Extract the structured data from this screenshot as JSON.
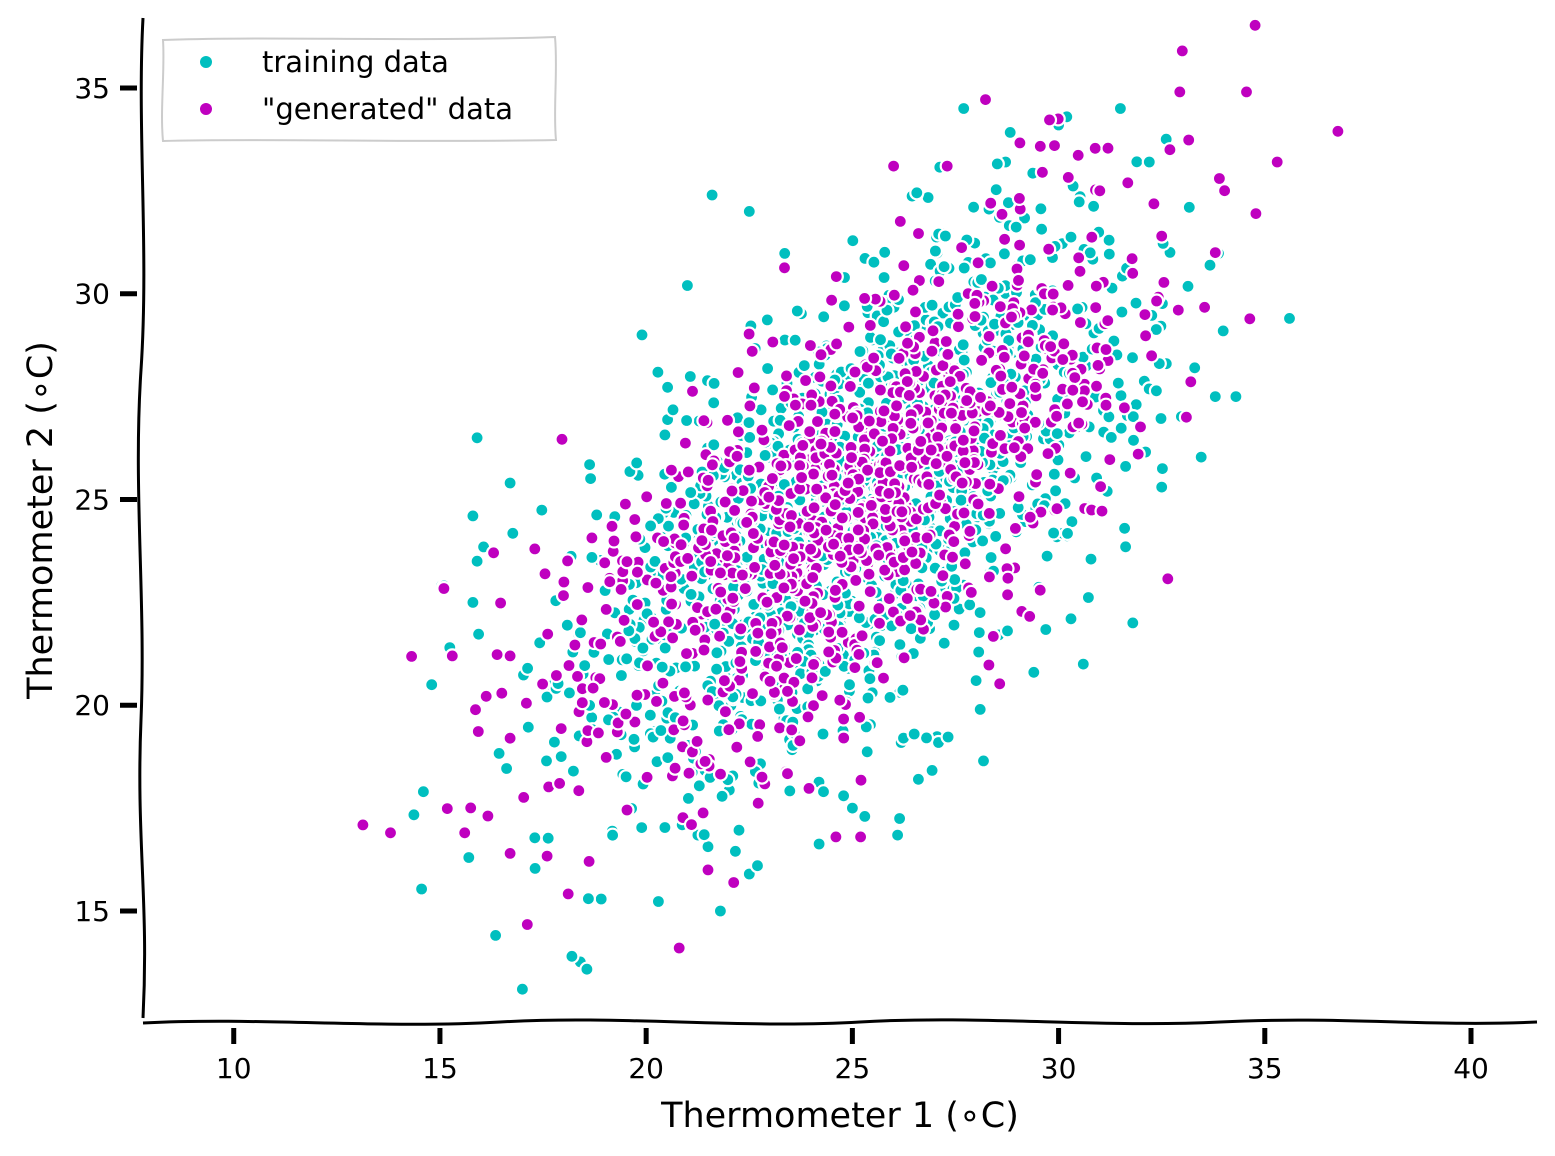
{
  "chart_data": {
    "type": "scatter",
    "xlabel": "Thermometer 1 (∘C)",
    "ylabel": "Thermometer 2 (∘C)",
    "xlim": [
      7.8,
      41.6
    ],
    "ylim": [
      12.4,
      36.7
    ],
    "xticks": [
      "10",
      "15",
      "20",
      "25",
      "30",
      "35",
      "40"
    ],
    "yticks": [
      "15",
      "20",
      "25",
      "30",
      "35"
    ],
    "legend_position": "top-left",
    "series": [
      {
        "name": "training data",
        "color": "#00BFBF",
        "distribution": {
          "mean_x": 25.2,
          "mean_y": 25.0,
          "std_x": 3.4,
          "std_y": 3.3,
          "correlation": 0.62,
          "count": 1500
        },
        "points": [
          [
            27.7,
            34.5
          ],
          [
            31.5,
            34.5
          ],
          [
            30.2,
            34.3
          ],
          [
            30.0,
            34.1
          ],
          [
            32.2,
            33.2
          ],
          [
            21.6,
            32.4
          ],
          [
            22.5,
            32.0
          ],
          [
            35.6,
            29.4
          ],
          [
            34.3,
            27.5
          ],
          [
            33.8,
            27.5
          ],
          [
            33.3,
            28.2
          ],
          [
            32.5,
            25.3
          ],
          [
            15.9,
            26.5
          ],
          [
            16.7,
            25.4
          ],
          [
            15.8,
            24.6
          ],
          [
            15.9,
            23.5
          ],
          [
            15.8,
            22.5
          ],
          [
            15.1,
            22.9
          ],
          [
            14.8,
            20.5
          ],
          [
            14.6,
            17.9
          ],
          [
            15.7,
            16.3
          ],
          [
            17.0,
            13.1
          ],
          [
            18.2,
            13.9
          ],
          [
            18.6,
            15.3
          ],
          [
            21.8,
            15.0
          ],
          [
            22.5,
            15.9
          ],
          [
            22.7,
            16.1
          ],
          [
            28.1,
            19.9
          ],
          [
            29.4,
            20.8
          ],
          [
            30.6,
            21.0
          ],
          [
            26.6,
            18.2
          ],
          [
            26.5,
            19.3
          ],
          [
            25.0,
            17.5
          ],
          [
            24.3,
            17.9
          ],
          [
            21.0,
            30.2
          ],
          [
            19.9,
            29.0
          ],
          [
            31.8,
            22.0
          ],
          [
            30.3,
            22.1
          ],
          [
            31.6,
            24.3
          ],
          [
            28.0,
            20.6
          ]
        ]
      },
      {
        "name": "\"generated\" data",
        "color": "#BF00BF",
        "distribution": {
          "mean_x": 25.0,
          "mean_y": 25.0,
          "std_x": 3.5,
          "std_y": 3.3,
          "correlation": 0.68,
          "count": 1000
        },
        "points": [
          [
            33.0,
            35.9
          ],
          [
            35.3,
            33.2
          ],
          [
            33.9,
            32.8
          ],
          [
            32.7,
            33.5
          ],
          [
            26.0,
            33.1
          ],
          [
            27.3,
            33.1
          ],
          [
            29.9,
            33.6
          ],
          [
            33.8,
            31.0
          ],
          [
            33.1,
            27.0
          ],
          [
            13.8,
            16.9
          ],
          [
            15.6,
            16.9
          ],
          [
            15.3,
            21.2
          ],
          [
            16.7,
            21.2
          ],
          [
            16.7,
            19.2
          ],
          [
            16.7,
            16.4
          ],
          [
            20.8,
            14.1
          ],
          [
            24.6,
            16.8
          ],
          [
            25.2,
            16.8
          ],
          [
            17.3,
            23.8
          ],
          [
            17.9,
            18.1
          ],
          [
            21.1,
            17.1
          ],
          [
            21.5,
            16.0
          ],
          [
            32.5,
            31.4
          ],
          [
            31.0,
            32.5
          ],
          [
            28.6,
            28.0
          ],
          [
            24.9,
            25.4
          ],
          [
            22.1,
            22.6
          ],
          [
            27.4,
            27.1
          ],
          [
            23.3,
            21.4
          ],
          [
            26.2,
            24.7
          ]
        ]
      }
    ]
  }
}
